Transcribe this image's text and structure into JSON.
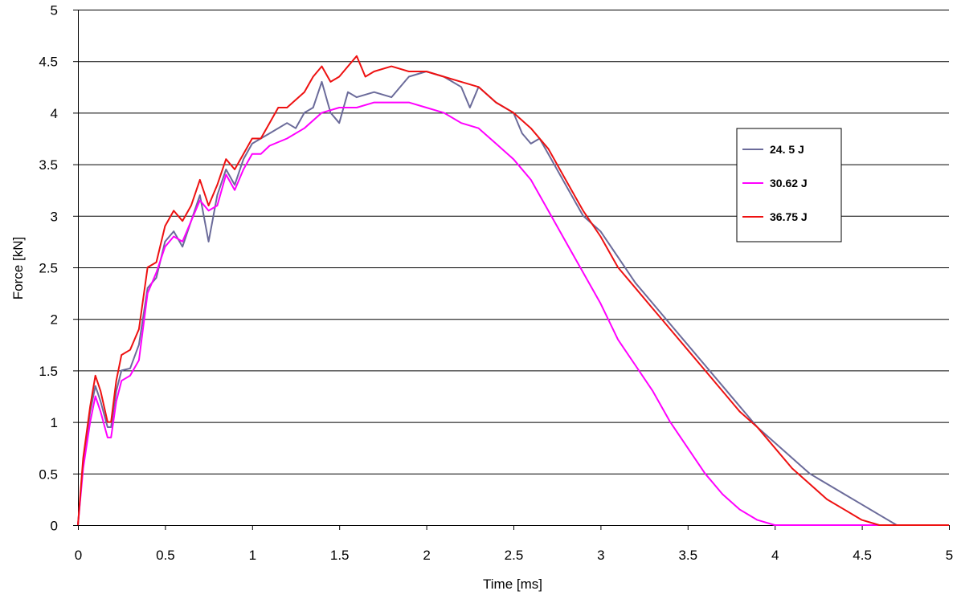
{
  "chart_data": {
    "type": "line",
    "xlabel": "Time [ms]",
    "ylabel": "Force [kN]",
    "xlim": [
      0,
      5
    ],
    "ylim": [
      0,
      5
    ],
    "x_ticks": [
      "0",
      "0.5",
      "1",
      "1.5",
      "2",
      "2.5",
      "3",
      "3.5",
      "4",
      "4.5",
      "5"
    ],
    "y_ticks": [
      "0",
      "0.5",
      "1",
      "1.5",
      "2",
      "2.5",
      "3",
      "3.5",
      "4",
      "4.5",
      "5"
    ],
    "grid": true,
    "legend_position": "right",
    "series": [
      {
        "name": "24. 5 J",
        "color": "#6b6b9a",
        "points": [
          [
            0,
            0
          ],
          [
            0.03,
            0.6
          ],
          [
            0.07,
            1.1
          ],
          [
            0.1,
            1.35
          ],
          [
            0.13,
            1.2
          ],
          [
            0.17,
            0.95
          ],
          [
            0.19,
            0.95
          ],
          [
            0.22,
            1.3
          ],
          [
            0.25,
            1.5
          ],
          [
            0.3,
            1.52
          ],
          [
            0.35,
            1.75
          ],
          [
            0.4,
            2.3
          ],
          [
            0.45,
            2.4
          ],
          [
            0.5,
            2.75
          ],
          [
            0.55,
            2.85
          ],
          [
            0.6,
            2.7
          ],
          [
            0.65,
            2.95
          ],
          [
            0.7,
            3.2
          ],
          [
            0.75,
            2.75
          ],
          [
            0.8,
            3.2
          ],
          [
            0.85,
            3.45
          ],
          [
            0.9,
            3.3
          ],
          [
            0.95,
            3.55
          ],
          [
            1.0,
            3.7
          ],
          [
            1.05,
            3.75
          ],
          [
            1.1,
            3.8
          ],
          [
            1.2,
            3.9
          ],
          [
            1.25,
            3.85
          ],
          [
            1.3,
            4.0
          ],
          [
            1.35,
            4.05
          ],
          [
            1.4,
            4.3
          ],
          [
            1.45,
            4.0
          ],
          [
            1.5,
            3.9
          ],
          [
            1.55,
            4.2
          ],
          [
            1.6,
            4.15
          ],
          [
            1.7,
            4.2
          ],
          [
            1.8,
            4.15
          ],
          [
            1.9,
            4.35
          ],
          [
            2.0,
            4.4
          ],
          [
            2.1,
            4.35
          ],
          [
            2.2,
            4.25
          ],
          [
            2.25,
            4.05
          ],
          [
            2.3,
            4.25
          ],
          [
            2.4,
            4.1
          ],
          [
            2.5,
            4.0
          ],
          [
            2.55,
            3.8
          ],
          [
            2.6,
            3.7
          ],
          [
            2.65,
            3.75
          ],
          [
            2.7,
            3.6
          ],
          [
            2.8,
            3.3
          ],
          [
            2.9,
            3.0
          ],
          [
            3.0,
            2.85
          ],
          [
            3.1,
            2.6
          ],
          [
            3.2,
            2.35
          ],
          [
            3.3,
            2.15
          ],
          [
            3.4,
            1.95
          ],
          [
            3.5,
            1.75
          ],
          [
            3.6,
            1.55
          ],
          [
            3.7,
            1.35
          ],
          [
            3.8,
            1.15
          ],
          [
            3.9,
            0.95
          ],
          [
            4.0,
            0.8
          ],
          [
            4.1,
            0.65
          ],
          [
            4.2,
            0.5
          ],
          [
            4.3,
            0.4
          ],
          [
            4.4,
            0.3
          ],
          [
            4.5,
            0.2
          ],
          [
            4.6,
            0.1
          ],
          [
            4.7,
            0.0
          ],
          [
            4.8,
            0.0
          ],
          [
            5.0,
            0.0
          ]
        ]
      },
      {
        "name": "30.62 J",
        "color": "#ff00ff",
        "points": [
          [
            0,
            0
          ],
          [
            0.03,
            0.55
          ],
          [
            0.07,
            1.0
          ],
          [
            0.1,
            1.25
          ],
          [
            0.13,
            1.1
          ],
          [
            0.17,
            0.85
          ],
          [
            0.19,
            0.85
          ],
          [
            0.22,
            1.2
          ],
          [
            0.25,
            1.4
          ],
          [
            0.3,
            1.45
          ],
          [
            0.35,
            1.6
          ],
          [
            0.4,
            2.25
          ],
          [
            0.45,
            2.45
          ],
          [
            0.5,
            2.7
          ],
          [
            0.55,
            2.8
          ],
          [
            0.6,
            2.75
          ],
          [
            0.65,
            2.95
          ],
          [
            0.7,
            3.15
          ],
          [
            0.75,
            3.05
          ],
          [
            0.8,
            3.1
          ],
          [
            0.85,
            3.4
          ],
          [
            0.9,
            3.25
          ],
          [
            0.95,
            3.45
          ],
          [
            1.0,
            3.6
          ],
          [
            1.05,
            3.6
          ],
          [
            1.1,
            3.68
          ],
          [
            1.2,
            3.75
          ],
          [
            1.3,
            3.85
          ],
          [
            1.4,
            4.0
          ],
          [
            1.5,
            4.05
          ],
          [
            1.6,
            4.05
          ],
          [
            1.7,
            4.1
          ],
          [
            1.8,
            4.1
          ],
          [
            1.9,
            4.1
          ],
          [
            2.0,
            4.05
          ],
          [
            2.1,
            4.0
          ],
          [
            2.2,
            3.9
          ],
          [
            2.3,
            3.85
          ],
          [
            2.4,
            3.7
          ],
          [
            2.5,
            3.55
          ],
          [
            2.6,
            3.35
          ],
          [
            2.7,
            3.05
          ],
          [
            2.8,
            2.75
          ],
          [
            2.9,
            2.45
          ],
          [
            3.0,
            2.15
          ],
          [
            3.1,
            1.8
          ],
          [
            3.2,
            1.55
          ],
          [
            3.3,
            1.3
          ],
          [
            3.4,
            1.0
          ],
          [
            3.5,
            0.75
          ],
          [
            3.6,
            0.5
          ],
          [
            3.7,
            0.3
          ],
          [
            3.8,
            0.15
          ],
          [
            3.9,
            0.05
          ],
          [
            4.0,
            0.0
          ],
          [
            4.2,
            0.0
          ],
          [
            5.0,
            0.0
          ]
        ]
      },
      {
        "name": "36.75 J",
        "color": "#ee1111",
        "points": [
          [
            0,
            0
          ],
          [
            0.03,
            0.65
          ],
          [
            0.07,
            1.15
          ],
          [
            0.1,
            1.45
          ],
          [
            0.13,
            1.3
          ],
          [
            0.17,
            1.0
          ],
          [
            0.19,
            1.0
          ],
          [
            0.22,
            1.4
          ],
          [
            0.25,
            1.65
          ],
          [
            0.3,
            1.7
          ],
          [
            0.35,
            1.9
          ],
          [
            0.4,
            2.5
          ],
          [
            0.45,
            2.55
          ],
          [
            0.5,
            2.9
          ],
          [
            0.55,
            3.05
          ],
          [
            0.6,
            2.95
          ],
          [
            0.65,
            3.1
          ],
          [
            0.7,
            3.35
          ],
          [
            0.75,
            3.1
          ],
          [
            0.8,
            3.3
          ],
          [
            0.85,
            3.55
          ],
          [
            0.9,
            3.45
          ],
          [
            0.95,
            3.6
          ],
          [
            1.0,
            3.75
          ],
          [
            1.05,
            3.75
          ],
          [
            1.1,
            3.9
          ],
          [
            1.15,
            4.05
          ],
          [
            1.2,
            4.05
          ],
          [
            1.3,
            4.2
          ],
          [
            1.35,
            4.35
          ],
          [
            1.4,
            4.45
          ],
          [
            1.45,
            4.3
          ],
          [
            1.5,
            4.35
          ],
          [
            1.55,
            4.45
          ],
          [
            1.6,
            4.55
          ],
          [
            1.65,
            4.35
          ],
          [
            1.7,
            4.4
          ],
          [
            1.8,
            4.45
          ],
          [
            1.9,
            4.4
          ],
          [
            2.0,
            4.4
          ],
          [
            2.1,
            4.35
          ],
          [
            2.2,
            4.3
          ],
          [
            2.3,
            4.25
          ],
          [
            2.4,
            4.1
          ],
          [
            2.5,
            4.0
          ],
          [
            2.6,
            3.85
          ],
          [
            2.7,
            3.65
          ],
          [
            2.8,
            3.35
          ],
          [
            2.9,
            3.05
          ],
          [
            3.0,
            2.8
          ],
          [
            3.1,
            2.5
          ],
          [
            3.2,
            2.3
          ],
          [
            3.3,
            2.1
          ],
          [
            3.4,
            1.9
          ],
          [
            3.5,
            1.7
          ],
          [
            3.6,
            1.5
          ],
          [
            3.7,
            1.3
          ],
          [
            3.8,
            1.1
          ],
          [
            3.9,
            0.95
          ],
          [
            4.0,
            0.75
          ],
          [
            4.1,
            0.55
          ],
          [
            4.2,
            0.4
          ],
          [
            4.3,
            0.25
          ],
          [
            4.4,
            0.15
          ],
          [
            4.5,
            0.05
          ],
          [
            4.6,
            0.0
          ],
          [
            4.8,
            0.0
          ],
          [
            5.0,
            0.0
          ]
        ]
      }
    ]
  }
}
